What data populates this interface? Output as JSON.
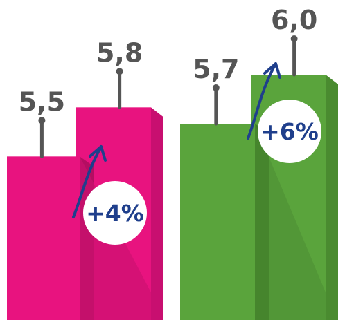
{
  "chart_data": {
    "type": "bar",
    "title": "",
    "xlabel": "",
    "ylabel": "",
    "ylim": [
      4.5,
      6.0
    ],
    "grid": false,
    "legend": "none",
    "groups": [
      {
        "color_left": "#e8137f",
        "color_right": "#e8137f",
        "side_left": "#c4106b",
        "side_right": "#c80f70",
        "values": [
          5.5,
          5.8
        ],
        "labels": [
          "5,5",
          "5,8"
        ],
        "change_label": "+4%"
      },
      {
        "color_left": "#5aa43c",
        "color_right": "#5aa43c",
        "side_left": "#46852d",
        "side_right": "#4a8b30",
        "values": [
          5.7,
          6.0
        ],
        "labels": [
          "5,7",
          "6,0"
        ],
        "change_label": "+6%"
      }
    ],
    "stem_color": "#555555",
    "arrow_color": "#1f3f8c"
  }
}
